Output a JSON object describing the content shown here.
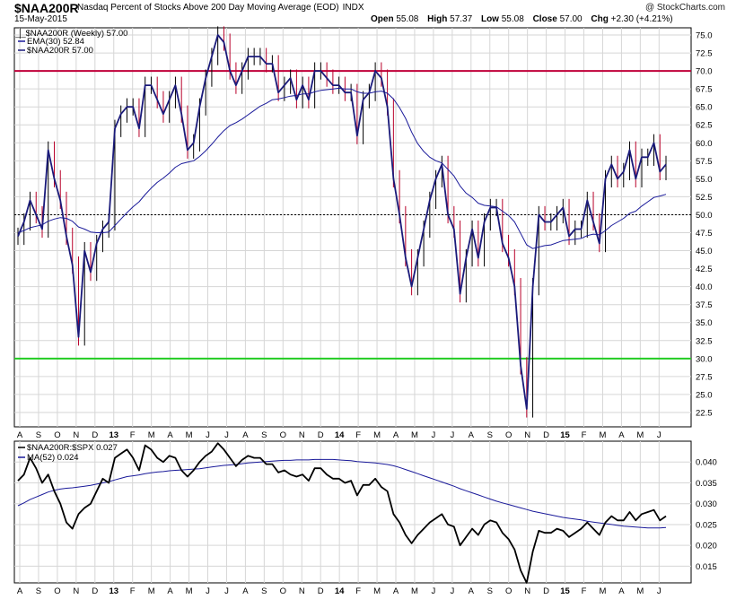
{
  "header": {
    "symbol": "$NAA200R",
    "description": "Nasdaq Percent of Stocks Above 200 Day Moving Average (EOD)",
    "exchange": "INDX",
    "credit": "@ StockCharts.com",
    "date": "15-May-2015",
    "ohlc": [
      {
        "label": "Open",
        "value": "55.08"
      },
      {
        "label": "High",
        "value": "57.37"
      },
      {
        "label": "Low",
        "value": "55.08"
      },
      {
        "label": "Close",
        "value": "57.00"
      },
      {
        "label": "Chg",
        "value": "+2.30 (+4.21%)"
      }
    ]
  },
  "colors": {
    "price": "#1a1a7a",
    "ema": "#1a1a9a",
    "up_bar": "#000000",
    "down_bar": "#b8002a",
    "upper_line": "#c0003a",
    "lower_line": "#22cc22",
    "mid_line": "#000000",
    "ratio": "#000000",
    "ratio_ma": "#1a1a9a",
    "grid": "#d6d6d6"
  },
  "chart_data": [
    {
      "type": "line",
      "title": "$NAA200R (Weekly) 57.00",
      "legend": [
        "EMA(30) 52.84",
        "$NAA200R 57.00"
      ],
      "legend_position": "top-left",
      "ylim": [
        20.5,
        76
      ],
      "yticks": [
        "75.0",
        "72.5",
        "70.0",
        "67.5",
        "65.0",
        "62.5",
        "60.0",
        "57.5",
        "55.0",
        "52.5",
        "50.0",
        "47.5",
        "45.0",
        "42.5",
        "40.0",
        "37.5",
        "35.0",
        "32.5",
        "30.0",
        "27.5",
        "25.0",
        "22.5"
      ],
      "grid": true,
      "reference_lines": [
        70,
        50,
        30
      ],
      "x_labels": [
        "A",
        "S",
        "O",
        "N",
        "D",
        "13",
        "F",
        "M",
        "A",
        "M",
        "J",
        "J",
        "A",
        "S",
        "O",
        "N",
        "D",
        "14",
        "F",
        "M",
        "A",
        "M",
        "J",
        "J",
        "A",
        "S",
        "O",
        "N",
        "D",
        "15",
        "F",
        "M",
        "A",
        "M",
        "J"
      ],
      "series": [
        {
          "name": "$NAA200R",
          "values": [
            47,
            49,
            52,
            50,
            48,
            59,
            55,
            52,
            47,
            43,
            33,
            45,
            42,
            46,
            48,
            49,
            62,
            64,
            65,
            65,
            62,
            68,
            68,
            66,
            64,
            66,
            68,
            64,
            59,
            60,
            65,
            69,
            72,
            75,
            74,
            70,
            68,
            70,
            72,
            72,
            72,
            71,
            71,
            67,
            68,
            69,
            66,
            68,
            66,
            70,
            70,
            69,
            68,
            68,
            67,
            67,
            61,
            66,
            67,
            70,
            69,
            65,
            55,
            50,
            44,
            40,
            44,
            48,
            52,
            55,
            57,
            50,
            48,
            39,
            44,
            48,
            44,
            49,
            51,
            51,
            46,
            44,
            40,
            29,
            23,
            40,
            50,
            49,
            49,
            50,
            51,
            47,
            48,
            48,
            52,
            49,
            46,
            55,
            57,
            55,
            56,
            59,
            55,
            58,
            58,
            60,
            56,
            57
          ]
        },
        {
          "name": "EMA(30)",
          "values": [
            47.5,
            47.8,
            48.2,
            48.4,
            48.6,
            49.1,
            49.4,
            49.6,
            49.5,
            49.1,
            48.3,
            48.0,
            47.6,
            47.5,
            47.5,
            47.6,
            48.5,
            49.4,
            50.3,
            51.1,
            51.8,
            52.8,
            53.7,
            54.5,
            55.1,
            55.8,
            56.6,
            57.1,
            57.3,
            57.5,
            58.1,
            58.9,
            59.8,
            60.8,
            61.7,
            62.4,
            62.8,
            63.3,
            63.9,
            64.5,
            65.1,
            65.5,
            66.0,
            66.1,
            66.3,
            66.5,
            66.6,
            66.8,
            66.8,
            67.1,
            67.3,
            67.4,
            67.5,
            67.6,
            67.5,
            67.5,
            67.1,
            66.9,
            66.9,
            67.1,
            67.2,
            66.9,
            66.1,
            64.9,
            63.4,
            61.5,
            59.9,
            58.8,
            58.0,
            57.5,
            57.2,
            56.3,
            55.4,
            54.0,
            53.0,
            52.4,
            51.6,
            51.3,
            51.2,
            51.1,
            50.5,
            49.9,
            49.0,
            47.4,
            45.8,
            45.3,
            45.5,
            45.7,
            45.8,
            46.1,
            46.4,
            46.5,
            46.6,
            46.7,
            47.1,
            47.3,
            47.2,
            47.8,
            48.5,
            49.0,
            49.5,
            50.2,
            50.5,
            51.2,
            51.8,
            52.4,
            52.6,
            52.84
          ]
        }
      ]
    },
    {
      "type": "line",
      "title": "$NAA200R:$SPX 0.027",
      "legend": [
        "MA(52) 0.024"
      ],
      "ylim": [
        0.011,
        0.045
      ],
      "yticks": [
        "0.040",
        "0.035",
        "0.030",
        "0.025",
        "0.020",
        "0.015"
      ],
      "grid": true,
      "series": [
        {
          "name": "$NAA200R:$SPX",
          "values": [
            0.0355,
            0.037,
            0.041,
            0.0385,
            0.035,
            0.037,
            0.033,
            0.03,
            0.0255,
            0.024,
            0.0275,
            0.029,
            0.03,
            0.033,
            0.036,
            0.035,
            0.041,
            0.042,
            0.043,
            0.041,
            0.038,
            0.044,
            0.043,
            0.041,
            0.04,
            0.0415,
            0.041,
            0.038,
            0.0365,
            0.038,
            0.04,
            0.0415,
            0.0425,
            0.0445,
            0.043,
            0.041,
            0.039,
            0.0405,
            0.0415,
            0.041,
            0.041,
            0.0395,
            0.0395,
            0.0375,
            0.038,
            0.037,
            0.0365,
            0.037,
            0.0355,
            0.0385,
            0.0385,
            0.037,
            0.036,
            0.036,
            0.035,
            0.0355,
            0.032,
            0.0345,
            0.0345,
            0.036,
            0.034,
            0.033,
            0.0275,
            0.0255,
            0.0225,
            0.0205,
            0.0225,
            0.024,
            0.0255,
            0.0265,
            0.0275,
            0.025,
            0.0245,
            0.02,
            0.022,
            0.024,
            0.0225,
            0.025,
            0.026,
            0.0255,
            0.023,
            0.0215,
            0.019,
            0.014,
            0.011,
            0.0185,
            0.0235,
            0.023,
            0.023,
            0.024,
            0.0235,
            0.022,
            0.023,
            0.024,
            0.0255,
            0.024,
            0.0225,
            0.0255,
            0.027,
            0.026,
            0.026,
            0.028,
            0.026,
            0.0275,
            0.028,
            0.0285,
            0.026,
            0.027
          ]
        },
        {
          "name": "MA(52)",
          "values": [
            0.0295,
            0.0302,
            0.031,
            0.0316,
            0.0322,
            0.0328,
            0.0332,
            0.0335,
            0.0337,
            0.0338,
            0.034,
            0.0342,
            0.0344,
            0.0347,
            0.035,
            0.0353,
            0.0357,
            0.0361,
            0.0365,
            0.0367,
            0.0369,
            0.0372,
            0.0374,
            0.0376,
            0.0377,
            0.0379,
            0.038,
            0.0381,
            0.0382,
            0.0383,
            0.0384,
            0.0386,
            0.0388,
            0.039,
            0.0392,
            0.0393,
            0.0394,
            0.0396,
            0.0398,
            0.0399,
            0.04,
            0.0401,
            0.0402,
            0.0403,
            0.0404,
            0.0404,
            0.0405,
            0.0405,
            0.0405,
            0.0406,
            0.0406,
            0.0406,
            0.0406,
            0.0405,
            0.0404,
            0.0403,
            0.0401,
            0.04,
            0.0399,
            0.0398,
            0.0396,
            0.0394,
            0.0391,
            0.0387,
            0.0382,
            0.0377,
            0.0372,
            0.0367,
            0.0362,
            0.0357,
            0.0352,
            0.0347,
            0.0342,
            0.0336,
            0.0331,
            0.0326,
            0.0321,
            0.0316,
            0.0311,
            0.0306,
            0.0302,
            0.0298,
            0.0294,
            0.029,
            0.0286,
            0.0282,
            0.0279,
            0.0276,
            0.0273,
            0.027,
            0.0267,
            0.0265,
            0.0263,
            0.0261,
            0.0258,
            0.0256,
            0.0254,
            0.0252,
            0.025,
            0.0248,
            0.0246,
            0.0245,
            0.0244,
            0.0243,
            0.0242,
            0.0242,
            0.0242,
            0.0243
          ]
        }
      ]
    }
  ]
}
